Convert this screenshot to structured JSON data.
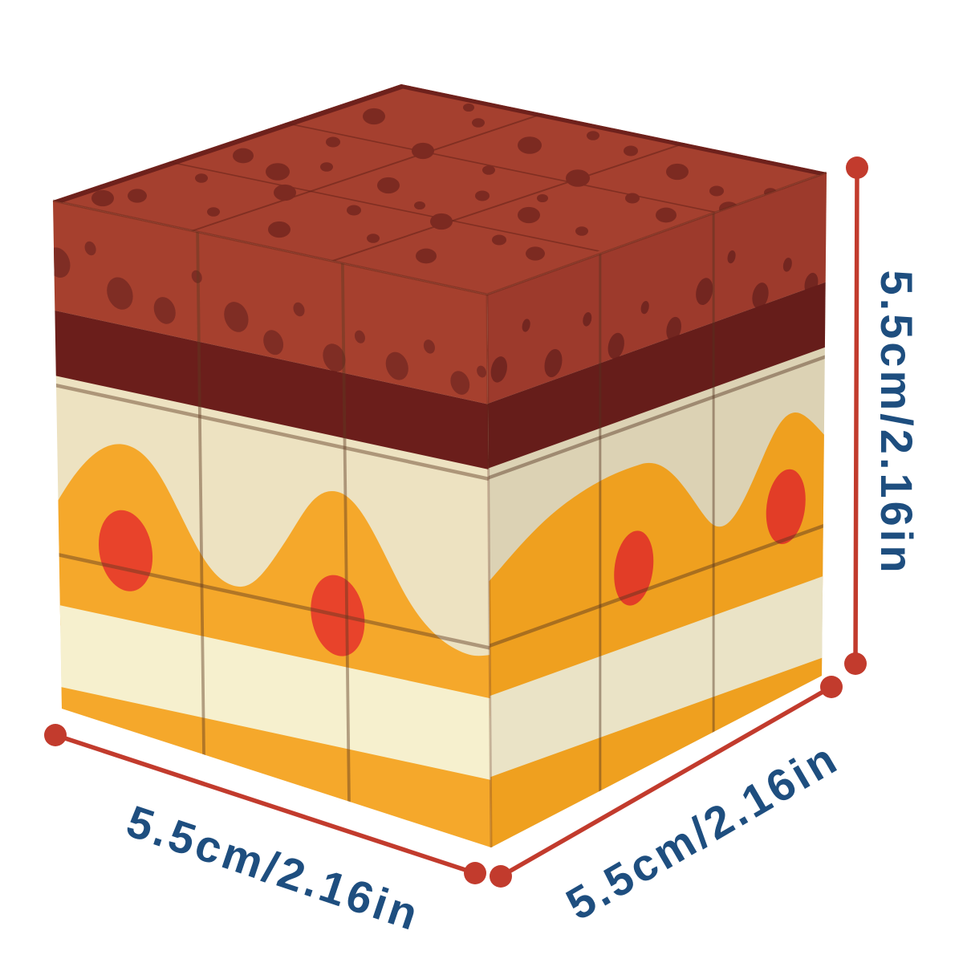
{
  "labels": {
    "height": "5.5cm/2.16in",
    "width": "5.5cm/2.16in",
    "depth": "5.5cm/2.16in"
  },
  "colors": {
    "background": "#ffffff",
    "dim_line": "#c23b2d",
    "dim_text": "#1e4e7f"
  },
  "cube": {
    "description": "3x3 magic cube with tiramisu cake pattern",
    "top": {
      "base": "#a5402f",
      "rim": "#6e211c",
      "dot_color": "#7c2a21",
      "seam": "#5e1d15",
      "dots": [
        [
          466,
          145,
          14
        ],
        [
          596,
          153,
          8
        ],
        [
          660,
          181,
          15
        ],
        [
          786,
          188,
          9
        ],
        [
          844,
          214,
          14
        ],
        [
          893,
          238,
          9
        ],
        [
          415,
          177,
          9
        ],
        [
          527,
          188,
          14
        ],
        [
          609,
          212,
          8
        ],
        [
          720,
          222,
          15
        ],
        [
          788,
          247,
          9
        ],
        [
          830,
          268,
          13
        ],
        [
          303,
          194,
          13
        ],
        [
          407,
          208,
          8
        ],
        [
          484,
          231,
          14
        ],
        [
          601,
          244,
          9
        ],
        [
          659,
          268,
          14
        ],
        [
          725,
          288,
          8
        ],
        [
          251,
          222,
          8
        ],
        [
          355,
          240,
          14
        ],
        [
          441,
          262,
          9
        ],
        [
          550,
          276,
          14
        ],
        [
          622,
          299,
          9
        ],
        [
          667,
          316,
          12
        ],
        [
          171,
          244,
          12
        ],
        [
          266,
          264,
          8
        ],
        [
          348,
          286,
          14
        ],
        [
          465,
          297,
          8
        ],
        [
          531,
          319,
          13
        ],
        [
          346,
          214,
          15
        ],
        [
          128,
          247,
          14
        ],
        [
          523,
          256,
          7
        ],
        [
          676,
          247,
          7
        ],
        [
          584,
          134,
          7
        ],
        [
          739,
          169,
          8
        ],
        [
          908,
          260,
          12
        ],
        [
          960,
          240,
          8
        ]
      ]
    },
    "left": {
      "cream": "#ede2c1",
      "red": "#a6402e",
      "maroon": "#6b1e1b",
      "orange": "#f5a82b",
      "stripe": "#f6f0ce",
      "fruit": "#e8432b",
      "band_dot_color": "#7f2d24",
      "seam": "#5f3a22",
      "band_dots": [
        [
          10,
          115,
          28
        ],
        [
          85,
          75,
          13
        ],
        [
          152,
          148,
          30
        ],
        [
          255,
          162,
          25
        ],
        [
          330,
          85,
          12
        ],
        [
          420,
          145,
          28
        ],
        [
          505,
          178,
          23
        ],
        [
          565,
          105,
          13
        ],
        [
          645,
          182,
          26
        ],
        [
          705,
          132,
          12
        ],
        [
          790,
          172,
          26
        ],
        [
          865,
          122,
          13
        ],
        [
          935,
          178,
          22
        ],
        [
          985,
          148,
          11
        ]
      ],
      "fruit_dots": [
        [
          158,
          632,
          62
        ],
        [
          646,
          668,
          62
        ]
      ]
    },
    "right": {
      "cream": "#dcd2b4",
      "red": "#9d3a2c",
      "maroon": "#661d1a",
      "orange": "#efa01f",
      "stripe": "#eae3c6",
      "fruit": "#e23d27",
      "band_dot_color": "#732620",
      "seam": "#55331e",
      "band_dots": [
        [
          35,
          150,
          24
        ],
        [
          115,
          85,
          12
        ],
        [
          195,
          175,
          26
        ],
        [
          295,
          115,
          13
        ],
        [
          380,
          185,
          24
        ],
        [
          465,
          132,
          12
        ],
        [
          550,
          192,
          22
        ],
        [
          640,
          142,
          25
        ],
        [
          720,
          95,
          12
        ],
        [
          805,
          188,
          24
        ],
        [
          885,
          148,
          13
        ],
        [
          955,
          200,
          20
        ]
      ],
      "fruit_dots": [
        [
          432,
          618,
          58
        ],
        [
          880,
          605,
          58
        ]
      ]
    }
  }
}
